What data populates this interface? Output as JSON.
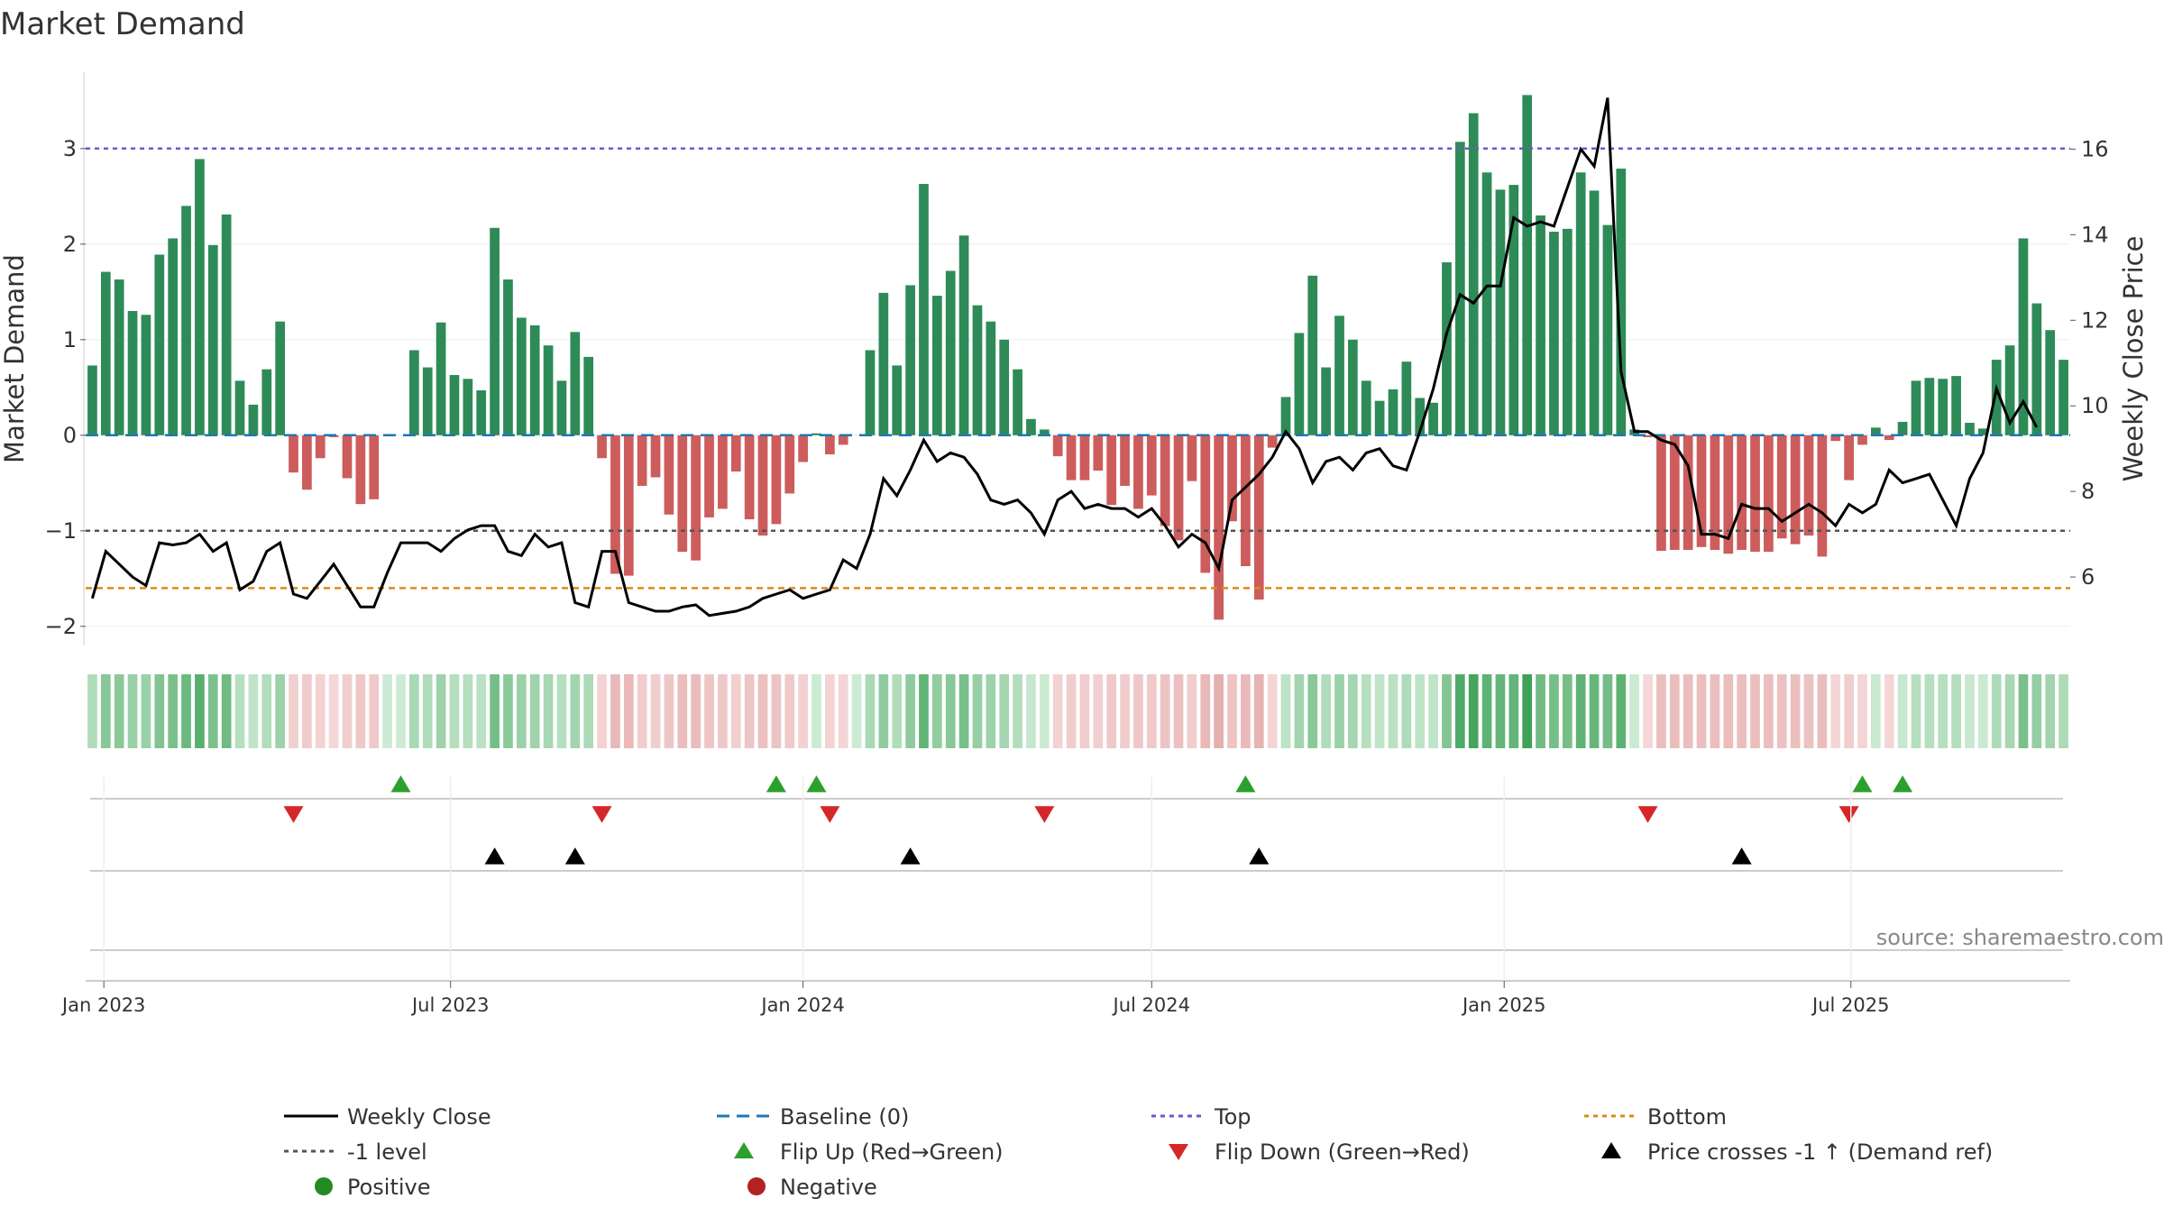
{
  "chart_data": {
    "type": "bar",
    "title": "Market Demand",
    "ylabel": "Market Demand",
    "y2label": "Weekly Close Price",
    "ylim": [
      -2.2,
      3.8
    ],
    "y2lim": [
      4.4,
      17.8
    ],
    "yticks": [
      "−2",
      "−1",
      "0",
      "1",
      "2",
      "3"
    ],
    "y2ticks": [
      "6",
      "8",
      "10",
      "12",
      "14",
      "16"
    ],
    "xticks": [
      {
        "label": "Jan 2023",
        "date": "2023-01-01"
      },
      {
        "label": "Jul 2023",
        "date": "2023-07-01"
      },
      {
        "label": "Jan 2024",
        "date": "2024-01-01"
      },
      {
        "label": "Jul 2024",
        "date": "2024-07-01"
      },
      {
        "label": "Jan 2025",
        "date": "2025-01-01"
      },
      {
        "label": "Jul 2025",
        "date": "2025-07-01"
      }
    ],
    "start_date": "2022-12-26",
    "week_interval_days": 7,
    "top_level": 3,
    "bottom_level": -1.6,
    "minus_one_level": -1,
    "baseline": 0,
    "demand": [
      0.73,
      1.71,
      1.63,
      1.3,
      1.26,
      1.89,
      2.06,
      2.4,
      2.89,
      1.99,
      2.31,
      0.57,
      0.32,
      0.69,
      1.19,
      -0.39,
      -0.57,
      -0.24,
      -0.02,
      -0.45,
      -0.72,
      -0.67,
      0,
      0,
      0.89,
      0.71,
      1.18,
      0.63,
      0.59,
      0.47,
      2.17,
      1.63,
      1.23,
      1.15,
      0.94,
      0.57,
      1.08,
      0.82,
      -0.24,
      -1.45,
      -1.47,
      -0.53,
      -0.44,
      -0.83,
      -1.22,
      -1.31,
      -0.86,
      -0.77,
      -0.38,
      -0.88,
      -1.05,
      -0.93,
      -0.61,
      -0.28,
      0.02,
      -0.2,
      -0.1,
      0,
      0.89,
      1.49,
      0.73,
      1.57,
      2.63,
      1.46,
      1.72,
      2.09,
      1.36,
      1.19,
      1.0,
      0.69,
      0.17,
      0.06,
      -0.22,
      -0.47,
      -0.47,
      -0.37,
      -0.73,
      -0.53,
      -0.77,
      -0.63,
      -0.95,
      -1.1,
      -0.48,
      -1.44,
      -1.93,
      -0.9,
      -1.37,
      -1.72,
      -0.13,
      0.4,
      1.07,
      1.67,
      0.71,
      1.25,
      1.0,
      0.57,
      0.36,
      0.48,
      0.77,
      0.39,
      0.34,
      1.81,
      3.07,
      3.37,
      2.75,
      2.57,
      2.62,
      3.56,
      2.3,
      2.13,
      2.16,
      2.75,
      2.56,
      2.2,
      2.79,
      0.06,
      -0.02,
      -1.21,
      -1.2,
      -1.2,
      -1.17,
      -1.2,
      -1.24,
      -1.2,
      -1.22,
      -1.22,
      -1.08,
      -1.14,
      -1.05,
      -1.27,
      -0.06,
      -0.47,
      -0.1,
      0.08,
      -0.05,
      0.14,
      0.57,
      0.6,
      0.59,
      0.62,
      0.13,
      0.07,
      0.79,
      0.94,
      2.06,
      1.38,
      1.1,
      0.79
    ],
    "close": [
      5.5,
      6.6,
      6.3,
      6.0,
      5.8,
      6.8,
      6.75,
      6.8,
      7.0,
      6.6,
      6.8,
      5.7,
      5.9,
      6.6,
      6.8,
      5.6,
      5.5,
      5.9,
      6.3,
      5.8,
      5.3,
      5.3,
      6.1,
      6.8,
      6.8,
      6.8,
      6.6,
      6.9,
      7.1,
      7.2,
      7.2,
      6.6,
      6.5,
      7.0,
      6.7,
      6.8,
      5.4,
      5.3,
      6.6,
      6.6,
      5.4,
      5.3,
      5.2,
      5.2,
      5.3,
      5.35,
      5.1,
      5.15,
      5.2,
      5.3,
      5.5,
      5.6,
      5.7,
      5.5,
      5.6,
      5.7,
      6.4,
      6.2,
      7.0,
      8.3,
      7.9,
      8.5,
      9.2,
      8.7,
      8.9,
      8.8,
      8.4,
      7.8,
      7.7,
      7.8,
      7.5,
      7.0,
      7.8,
      8.0,
      7.6,
      7.7,
      7.6,
      7.6,
      7.4,
      7.6,
      7.2,
      6.7,
      7.0,
      6.8,
      6.2,
      7.8,
      8.1,
      8.4,
      8.8,
      9.4,
      9.0,
      8.2,
      8.7,
      8.8,
      8.5,
      8.9,
      9.0,
      8.6,
      8.5,
      9.4,
      10.4,
      11.7,
      12.6,
      12.4,
      12.8,
      12.8,
      14.4,
      14.2,
      14.3,
      14.2,
      15.1,
      16.0,
      15.6,
      17.2,
      10.8,
      9.4,
      9.4,
      9.2,
      9.1,
      8.6,
      7.0,
      7.0,
      6.9,
      7.7,
      7.6,
      7.6,
      7.3,
      7.5,
      7.7,
      7.5,
      7.2,
      7.7,
      7.5,
      7.7,
      8.5,
      8.2,
      8.3,
      8.4,
      7.8,
      7.2,
      8.3,
      8.9,
      10.4,
      9.6,
      10.1,
      9.5
    ],
    "flip_up_weeks": [
      23,
      51,
      54,
      86,
      132,
      135
    ],
    "flip_down_weeks": [
      15,
      38,
      55,
      71,
      116,
      131
    ],
    "price_cross_weeks": [
      30,
      36,
      61,
      87,
      123
    ],
    "legend": [
      {
        "label": "Weekly Close",
        "marker": "line-solid",
        "color": "#000000"
      },
      {
        "label": "Baseline (0)",
        "marker": "line-dash",
        "color": "#1f77b4"
      },
      {
        "label": "Top",
        "marker": "line-dot",
        "color": "#6a5acd"
      },
      {
        "label": "Bottom",
        "marker": "line-dot",
        "color": "#d98c1a"
      },
      {
        "label": "-1 level",
        "marker": "line-dot",
        "color": "#555555"
      },
      {
        "label": "Flip Up (Red→Green)",
        "marker": "triangle-up",
        "color": "#2ca02c"
      },
      {
        "label": "Flip Down (Green→Red)",
        "marker": "triangle-down",
        "color": "#d62728"
      },
      {
        "label": "Price crosses -1 ↑ (Demand ref)",
        "marker": "triangle-up",
        "color": "#000000"
      },
      {
        "label": "Positive",
        "marker": "circle",
        "color": "#228b22"
      },
      {
        "label": "Negative",
        "marker": "circle",
        "color": "#b22222"
      }
    ],
    "colors": {
      "positive": "#2e8b57",
      "negative": "#cd5c5c",
      "close": "#000000",
      "top": "#6a5acd",
      "bottom": "#d98c1a",
      "minus_one": "#555555",
      "baseline": "#1f77b4",
      "flip_up": "#2ca02c",
      "flip_down": "#d62728",
      "cross": "#000000"
    }
  },
  "source": "source: sharemaestro.com"
}
